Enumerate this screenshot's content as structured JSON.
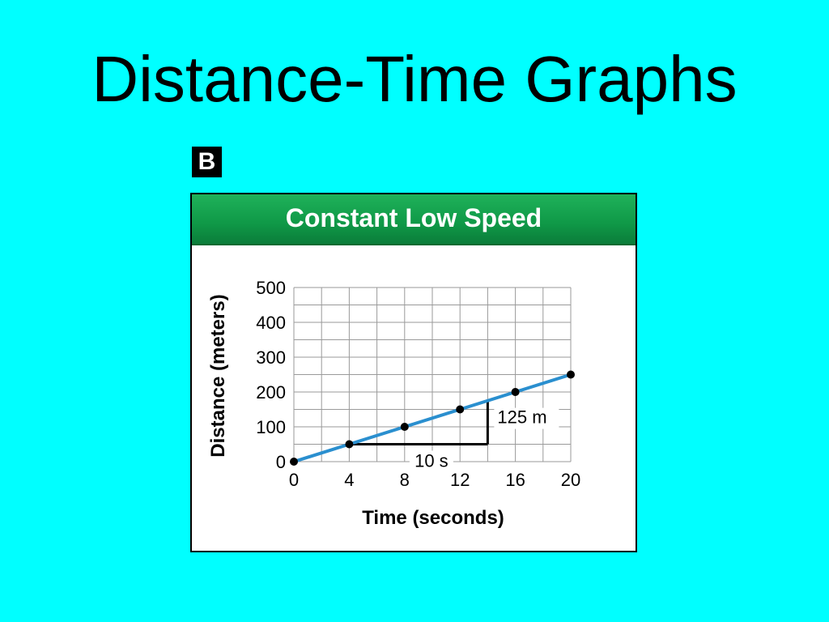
{
  "slide": {
    "title": "Distance-Time Graphs"
  },
  "figure": {
    "label": "B"
  },
  "chart_data": {
    "type": "line",
    "title": "Constant Low Speed",
    "xlabel": "Time (seconds)",
    "ylabel": "Distance (meters)",
    "xlim": [
      0,
      20
    ],
    "ylim": [
      0,
      500
    ],
    "x_ticks": [
      0,
      4,
      8,
      12,
      16,
      20
    ],
    "y_ticks": [
      0,
      100,
      200,
      300,
      400,
      500
    ],
    "grid": true,
    "series": [
      {
        "color": "#2a8fcf",
        "x": [
          0,
          4,
          8,
          12,
          16,
          20
        ],
        "y": [
          0,
          50,
          100,
          150,
          200,
          250
        ]
      }
    ],
    "slope_triangle": {
      "run_label": "10 s",
      "rise_label": "125 m",
      "x_from": 4,
      "x_to": 14,
      "y_from": 50,
      "y_to": 175
    }
  }
}
